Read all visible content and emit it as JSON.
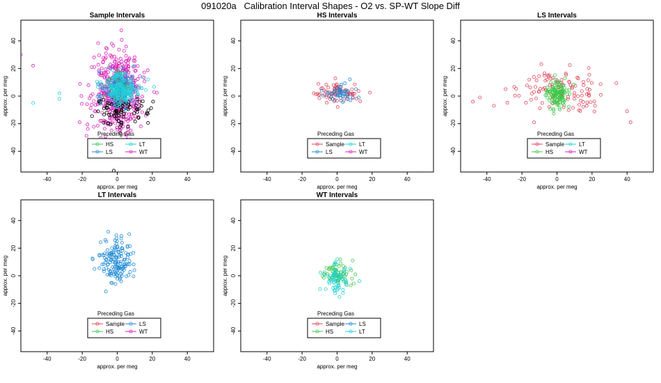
{
  "figure": {
    "title": "091020a   Calibration Interval Shapes - O2 vs. SP-WT Slope Diff"
  },
  "colors": {
    "Sample": "#e0455a",
    "HS": "#3ec94b",
    "LS": "#1f8ad6",
    "LT": "#22d0d8",
    "WT": "#d81fb8",
    "Unknown": "#000000"
  },
  "chart_data": [
    {
      "type": "scatter",
      "title": "Sample Intervals",
      "xlabel": "approx. per meg",
      "ylabel": "approx. per meg",
      "xlim": [
        -55,
        55
      ],
      "ylim": [
        -55,
        55
      ],
      "xticks": [
        -40,
        -20,
        0,
        20,
        40
      ],
      "yticks": [
        -40,
        -20,
        0,
        20,
        40
      ],
      "legend_title": "Preceding Gas",
      "legend_entries": [
        "HS",
        "LT",
        "LS",
        "WT"
      ],
      "series": [
        {
          "name": "WT",
          "n": 480,
          "cx": 0,
          "cy": 2,
          "sx": 7,
          "sy": 16,
          "extreme": [
            [
              -48,
              22
            ],
            [
              -55,
              30
            ]
          ]
        },
        {
          "name": "Unknown",
          "n": 90,
          "cx": 2,
          "cy": -10,
          "sx": 8,
          "sy": 6,
          "extreme": [
            [
              -2,
              -54
            ]
          ]
        },
        {
          "name": "HS",
          "n": 60,
          "cx": 1,
          "cy": 6,
          "sx": 3,
          "sy": 5,
          "extreme": []
        },
        {
          "name": "LS",
          "n": 90,
          "cx": 1,
          "cy": 6,
          "sx": 4,
          "sy": 6,
          "extreme": []
        },
        {
          "name": "LT",
          "n": 200,
          "cx": 2,
          "cy": 5,
          "sx": 5,
          "sy": 6,
          "extreme": [
            [
              -48,
              -5
            ],
            [
              -33,
              2
            ],
            [
              -33,
              -2
            ]
          ]
        }
      ]
    },
    {
      "type": "scatter",
      "title": "HS Intervals",
      "xlabel": "approx. per meg",
      "ylabel": "approx. per meg",
      "xlim": [
        -55,
        55
      ],
      "ylim": [
        -55,
        55
      ],
      "xticks": [
        -40,
        -20,
        0,
        20,
        40
      ],
      "yticks": [
        -40,
        -20,
        0,
        20,
        40
      ],
      "legend_title": "Preceding Gas",
      "legend_entries": [
        "Sample",
        "LT",
        "LS",
        "WT"
      ],
      "series": [
        {
          "name": "Sample",
          "n": 80,
          "cx": 0,
          "cy": 2,
          "sx": 6,
          "sy": 3.5,
          "extreme": []
        },
        {
          "name": "LS",
          "n": 45,
          "cx": 2,
          "cy": 2,
          "sx": 5,
          "sy": 3,
          "extreme": []
        }
      ]
    },
    {
      "type": "scatter",
      "title": "LS Intervals",
      "xlabel": "approx. per meg",
      "ylabel": "approx. per meg",
      "xlim": [
        -55,
        55
      ],
      "ylim": [
        -55,
        55
      ],
      "xticks": [
        -40,
        -20,
        0,
        20,
        40
      ],
      "yticks": [
        -40,
        -20,
        0,
        20,
        40
      ],
      "legend_title": "Preceding Gas",
      "legend_entries": [
        "Sample",
        "LT",
        "HS",
        "WT"
      ],
      "series": [
        {
          "name": "Sample",
          "n": 110,
          "cx": 2,
          "cy": 4,
          "sx": 14,
          "sy": 8,
          "extreme": [
            [
              -48,
              -4
            ],
            [
              -44,
              -1
            ],
            [
              -36,
              -7
            ],
            [
              40,
              -11
            ],
            [
              42,
              -19
            ]
          ]
        },
        {
          "name": "HS",
          "n": 130,
          "cx": 0,
          "cy": 1,
          "sx": 3,
          "sy": 5,
          "extreme": []
        }
      ]
    },
    {
      "type": "scatter",
      "title": "LT Intervals",
      "xlabel": "approx. per meg",
      "ylabel": "approx. per meg",
      "xlim": [
        -55,
        55
      ],
      "ylim": [
        -55,
        55
      ],
      "xticks": [
        -40,
        -20,
        0,
        20,
        40
      ],
      "yticks": [
        -40,
        -20,
        0,
        20,
        40
      ],
      "legend_title": "Preceding Gas",
      "legend_entries": [
        "Sample",
        "LS",
        "HS",
        "WT"
      ],
      "series": [
        {
          "name": "LS",
          "n": 150,
          "cx": 0,
          "cy": 9,
          "sx": 5,
          "sy": 8,
          "extreme": [
            [
              -14,
              12
            ],
            [
              -13,
              5
            ]
          ]
        }
      ]
    },
    {
      "type": "scatter",
      "title": "WT Intervals",
      "xlabel": "approx. per meg",
      "ylabel": "approx. per meg",
      "xlim": [
        -55,
        55
      ],
      "ylim": [
        -55,
        55
      ],
      "xticks": [
        -40,
        -20,
        0,
        20,
        40
      ],
      "yticks": [
        -40,
        -20,
        0,
        20,
        40
      ],
      "legend_title": "Preceding Gas",
      "legend_entries": [
        "Sample",
        "LS",
        "HS",
        "LT"
      ],
      "series": [
        {
          "name": "HS",
          "n": 70,
          "cx": 0,
          "cy": 1,
          "sx": 4,
          "sy": 4,
          "extreme": [
            [
              8,
              4
            ]
          ]
        },
        {
          "name": "LT",
          "n": 60,
          "cx": 0,
          "cy": -2,
          "sx": 4,
          "sy": 5,
          "extreme": []
        }
      ]
    }
  ]
}
